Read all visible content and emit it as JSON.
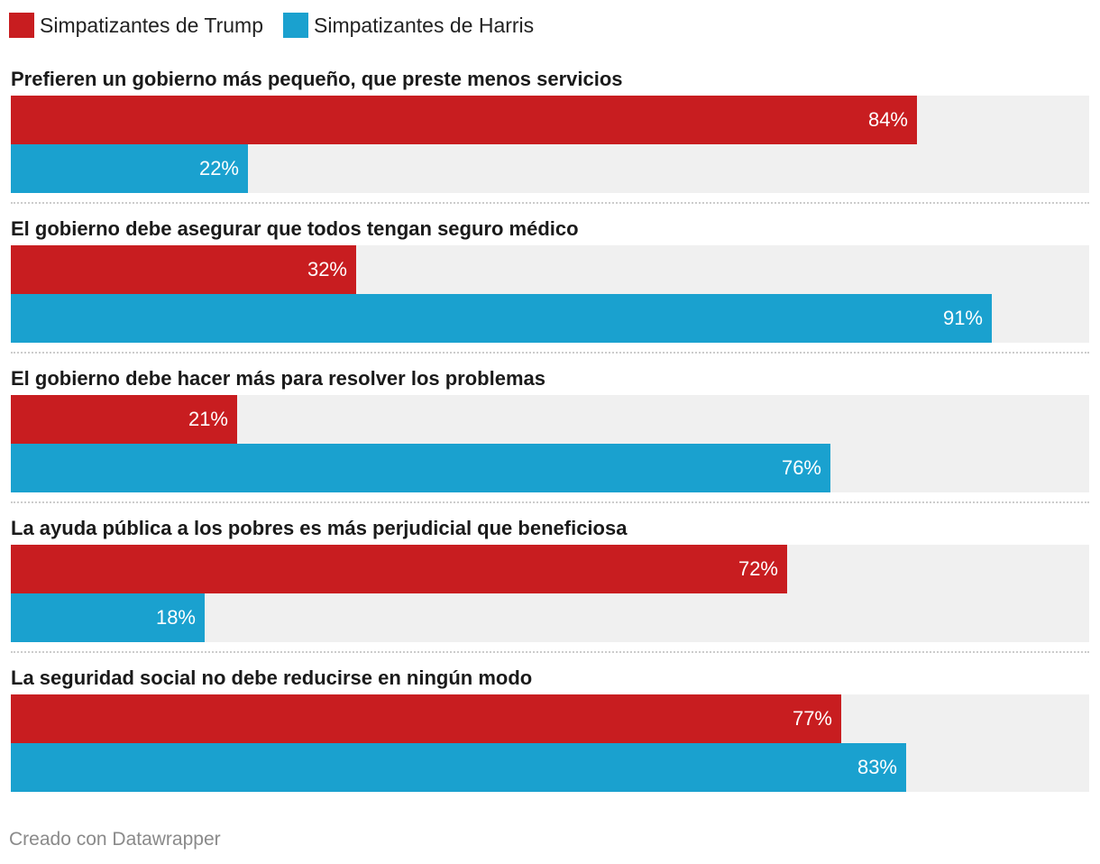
{
  "colors": {
    "trump": "#c81d20",
    "harris": "#1aa1cf",
    "track": "#f0f0f0"
  },
  "legend": [
    {
      "label": "Simpatizantes de Trump",
      "color_key": "trump"
    },
    {
      "label": "Simpatizantes de Harris",
      "color_key": "harris"
    }
  ],
  "chart_data": {
    "type": "bar",
    "orientation": "horizontal",
    "xlim": [
      0,
      100
    ],
    "unit": "%",
    "series": [
      {
        "name": "Simpatizantes de Trump",
        "values": [
          84,
          32,
          21,
          72,
          77
        ]
      },
      {
        "name": "Simpatizantes de Harris",
        "values": [
          22,
          91,
          76,
          18,
          83
        ]
      }
    ],
    "categories": [
      "Prefieren un gobierno más pequeño, que preste menos servicios",
      "El gobierno debe asegurar que todos tengan seguro médico",
      "El gobierno debe hacer más para resolver los problemas",
      "La ayuda pública a los pobres es más perjudicial que beneficiosa",
      "La seguridad social no debe reducirse en ningún modo"
    ],
    "value_labels": [
      [
        "84%",
        "22%"
      ],
      [
        "32%",
        "91%"
      ],
      [
        "21%",
        "76%"
      ],
      [
        "72%",
        "18%"
      ],
      [
        "77%",
        "83%"
      ]
    ]
  },
  "footer": {
    "credit": "Creado con Datawrapper"
  }
}
